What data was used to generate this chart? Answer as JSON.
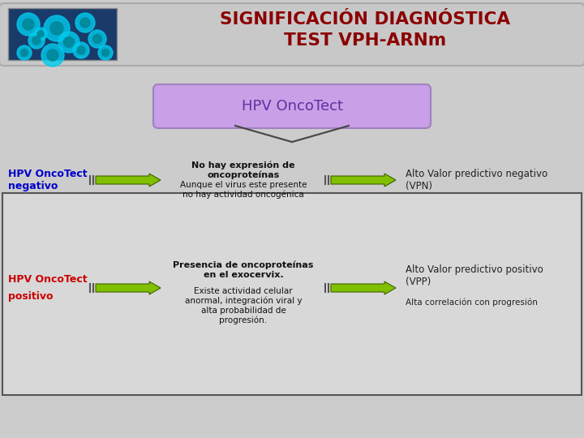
{
  "bg_color": "#cccccc",
  "title_line1": "SIGNIFICACIÓN DIAGNÓSTICA",
  "title_line2": "TEST VPH-ARNm",
  "title_color": "#8b0000",
  "title_bg": "#c8c8c8",
  "title_edge": "#aaaaaa",
  "oncotect_box_text": "HPV OncoTect",
  "oncotect_box_fill": "#c9a0e8",
  "oncotect_box_edge": "#a080c0",
  "oncotect_text_color": "#6030a0",
  "neg_label_line1": "HPV OncoTect",
  "neg_label_line2": "negativo",
  "neg_color": "#0000cc",
  "pos_label_line1": "HPV OncoTect",
  "pos_label_line2": "positivo",
  "pos_color": "#cc0000",
  "arrow_color": "#80c000",
  "arrow_edge": "#406000",
  "neg_mid_bold": "No hay expresión de\noncoproteínas",
  "neg_mid_normal": "Aunque el virus este presente\nno hay actividad oncogénica",
  "neg_right_bold": "Alto Valor predictivo negativo\n(VPN)",
  "pos_mid_bold": "Presencia de oncoproteínas\nen el exocervix.",
  "pos_mid_normal": "Existe actividad celular\nanormal, integración viral y\nalta probabilidad de\nprogresión.",
  "pos_right_bold": "Alto Valor predictivo positivo\n(VPP)",
  "pos_right_normal": "Alta correlación con progresión",
  "pos_box_edge": "#555555",
  "pos_box_fill": "#d8d8d8",
  "img_bg": "#1a3a6a",
  "chevron_fill": "#c0c0c0",
  "chevron_edge": "#555555"
}
